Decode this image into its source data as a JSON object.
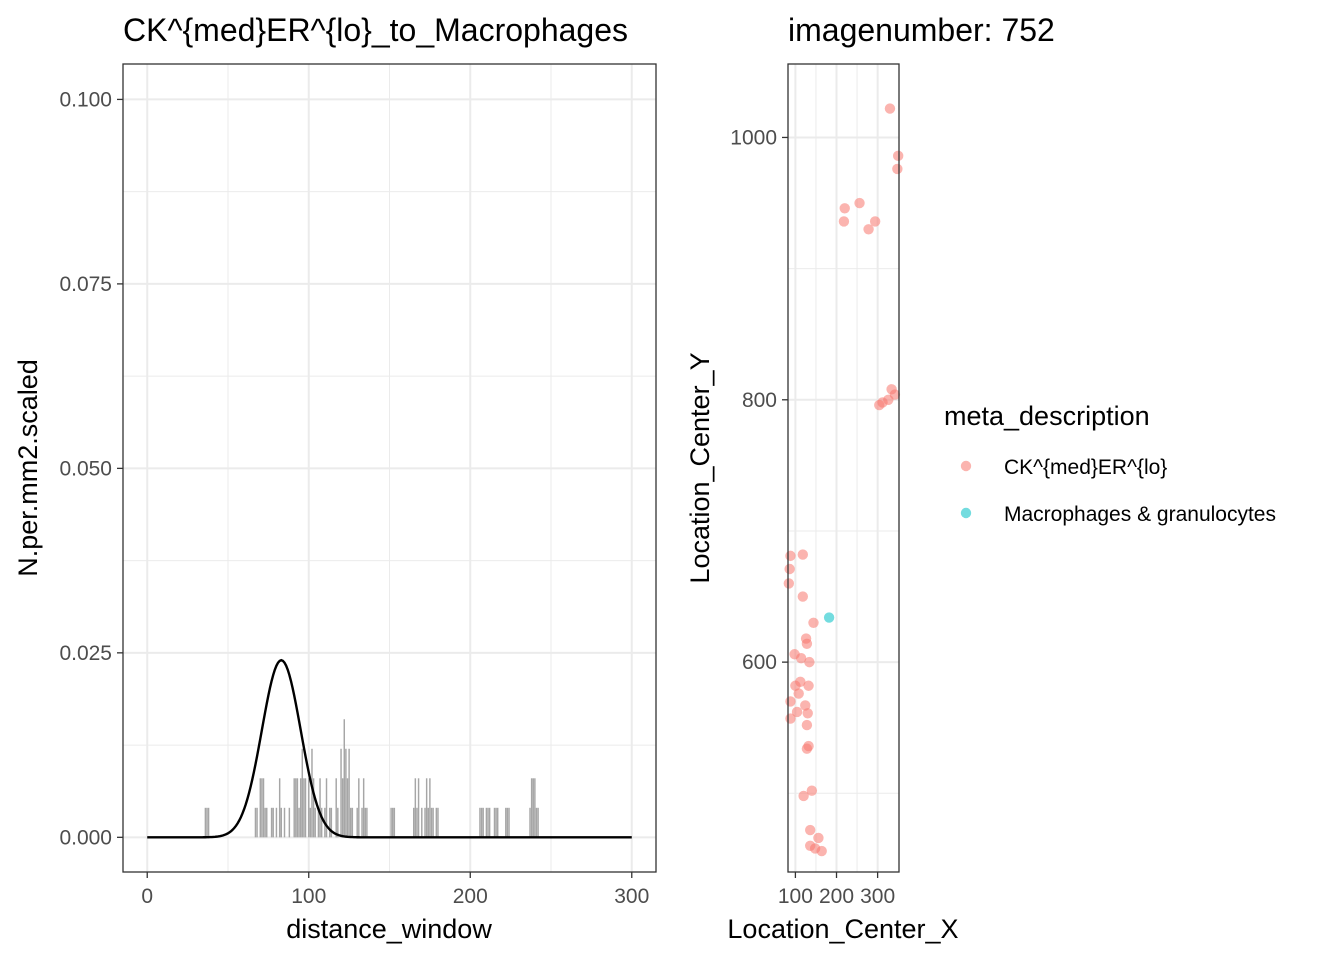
{
  "chart_data": [
    {
      "type": "bar",
      "title": "CK^{med}ER^{lo}_to_Macrophages",
      "xlabel": "distance_window",
      "ylabel": "N.per.mm2.scaled",
      "xlim": [
        -15,
        315
      ],
      "ylim": [
        -0.0047,
        0.1048
      ],
      "x_ticks": [
        0,
        100,
        200,
        300
      ],
      "x_tick_labels": [
        "0",
        "100",
        "200",
        "300"
      ],
      "y_ticks": [
        0,
        0.025,
        0.05,
        0.075,
        0.1
      ],
      "y_tick_labels": [
        "0.000",
        "0.025",
        "0.050",
        "0.075",
        "0.100"
      ],
      "grid": true,
      "bar_color": "#a6a6a6",
      "bars": {
        "x": [
          36,
          37,
          38,
          67,
          68,
          70,
          71,
          72,
          73,
          74,
          77,
          78,
          80,
          82,
          83,
          85,
          88,
          91,
          92,
          93,
          94,
          95,
          96,
          97,
          98,
          100,
          101,
          102,
          103,
          104,
          106,
          107,
          108,
          110,
          111,
          113,
          114,
          117,
          118,
          120,
          121,
          122,
          123,
          124,
          125,
          126,
          127,
          130,
          131,
          133,
          134,
          135,
          136,
          151,
          152,
          153,
          165,
          166,
          167,
          168,
          170,
          172,
          173,
          174,
          175,
          176,
          177,
          179,
          180,
          206,
          207,
          208,
          210,
          211,
          212,
          215,
          216,
          217,
          222,
          223,
          224,
          237,
          238,
          239,
          240,
          241,
          242
        ],
        "values": [
          0.004,
          0.004,
          0.004,
          0.004,
          0.004,
          0.008,
          0.008,
          0.008,
          0.004,
          0.004,
          0.004,
          0.004,
          0.004,
          0.008,
          0.004,
          0.004,
          0.004,
          0.008,
          0.008,
          0.008,
          0.004,
          0.008,
          0.012,
          0.008,
          0.008,
          0.008,
          0.004,
          0.012,
          0.008,
          0.004,
          0.004,
          0.008,
          0.004,
          0.004,
          0.008,
          0.004,
          0.004,
          0.008,
          0.004,
          0.012,
          0.008,
          0.016,
          0.012,
          0.008,
          0.012,
          0.004,
          0.004,
          0.004,
          0.008,
          0.004,
          0.008,
          0.004,
          0.004,
          0.004,
          0.004,
          0.004,
          0.004,
          0.008,
          0.004,
          0.008,
          0.004,
          0.004,
          0.008,
          0.004,
          0.008,
          0.004,
          0.004,
          0.004,
          0.004,
          0.004,
          0.004,
          0.004,
          0.004,
          0.004,
          0.004,
          0.004,
          0.004,
          0.004,
          0.004,
          0.004,
          0.004,
          0.004,
          0.008,
          0.008,
          0.008,
          0.004,
          0.004
        ]
      },
      "line": {
        "name": "density",
        "color": "#000000",
        "peak_x": 83,
        "peak_y": 0.024,
        "sd": 12,
        "x_range": [
          0,
          300
        ]
      }
    },
    {
      "type": "scatter",
      "title": "imagenumber:  752",
      "xlabel": "Location_Center_X",
      "ylabel": "Location_Center_Y",
      "xlim": [
        82,
        352
      ],
      "ylim": [
        440,
        1056
      ],
      "x_ticks": [
        100,
        200,
        300
      ],
      "x_tick_labels": [
        "100",
        "200",
        "300"
      ],
      "y_ticks": [
        600,
        800,
        1000
      ],
      "y_tick_labels": [
        "600",
        "800",
        "1000"
      ],
      "grid": true,
      "legend": {
        "title": "meta_description",
        "position": "right",
        "entries": [
          {
            "label": "CK^{med}ER^{lo}",
            "color": "#F8766D"
          },
          {
            "label": "Macrophages & granulocytes",
            "color": "#00BFC4"
          }
        ]
      },
      "series": [
        {
          "name": "CK^{med}ER^{lo}",
          "color": "#F8766D",
          "points": [
            [
              330,
              1022
            ],
            [
              350,
              986
            ],
            [
              348,
              976
            ],
            [
              256,
              950
            ],
            [
              220,
              946
            ],
            [
              218,
              936
            ],
            [
              278,
              930
            ],
            [
              294,
              936
            ],
            [
              334,
              808
            ],
            [
              342,
              804
            ],
            [
              326,
              800
            ],
            [
              312,
              798
            ],
            [
              304,
              796
            ],
            [
              88,
              681
            ],
            [
              118,
              682
            ],
            [
              86,
              671
            ],
            [
              84,
              660
            ],
            [
              118,
              650
            ],
            [
              144,
              630
            ],
            [
              126,
              618
            ],
            [
              128,
              614
            ],
            [
              98,
              606
            ],
            [
              114,
              603
            ],
            [
              134,
              600
            ],
            [
              112,
              585
            ],
            [
              100,
              582
            ],
            [
              132,
              582
            ],
            [
              108,
              576
            ],
            [
              88,
              570
            ],
            [
              124,
              567
            ],
            [
              104,
              562
            ],
            [
              130,
              561
            ],
            [
              88,
              557
            ],
            [
              128,
              552
            ],
            [
              132,
              536
            ],
            [
              128,
              534
            ],
            [
              140,
              502
            ],
            [
              120,
              498
            ],
            [
              136,
              472
            ],
            [
              156,
              466
            ],
            [
              136,
              460
            ],
            [
              148,
              458
            ],
            [
              164,
              456
            ]
          ]
        },
        {
          "name": "Macrophages & granulocytes",
          "color": "#00BFC4",
          "points": [
            [
              182,
              634
            ]
          ]
        }
      ]
    }
  ]
}
